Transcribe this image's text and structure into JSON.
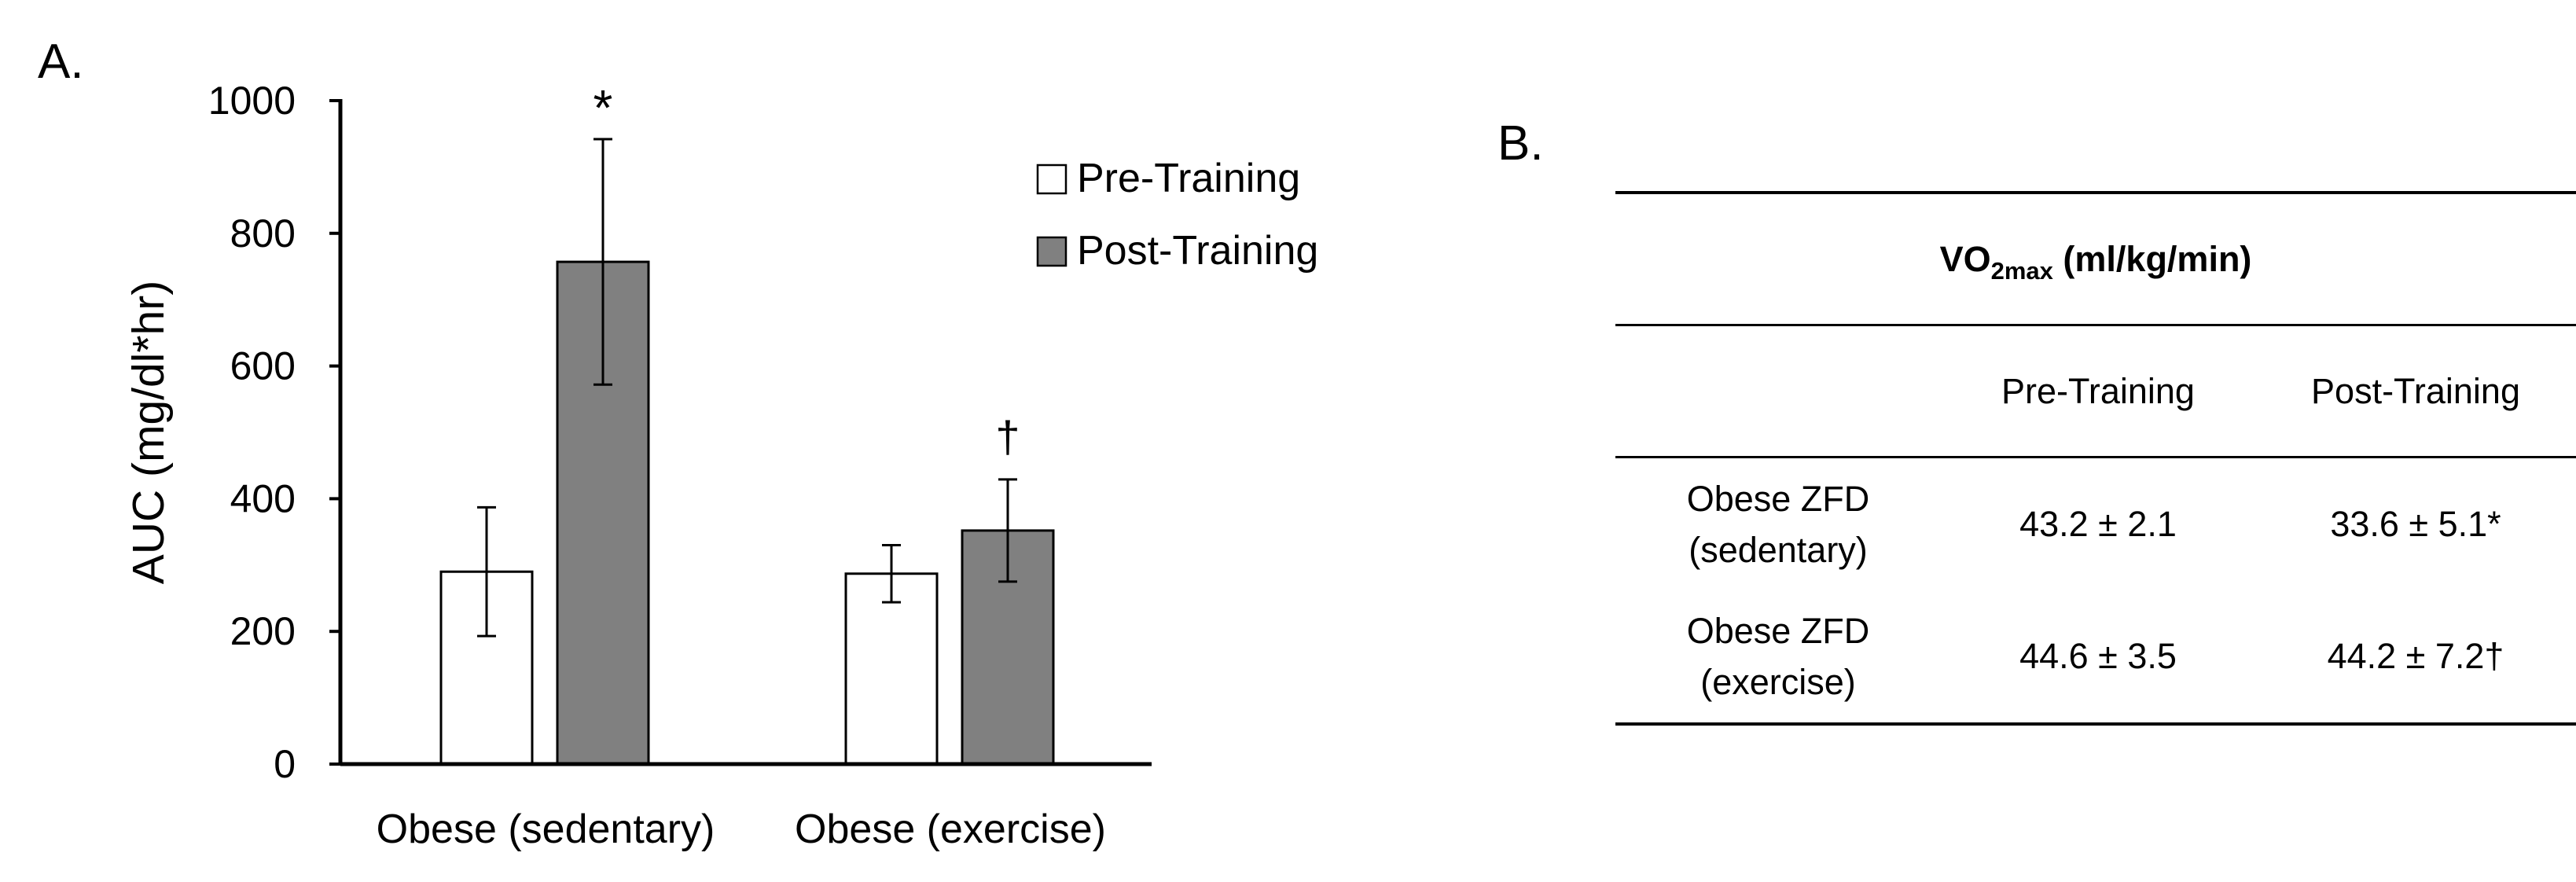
{
  "panel_a_label": "A.",
  "panel_b_label": "B.",
  "chart_data": {
    "type": "bar",
    "title": "",
    "xlabel": "",
    "ylabel": "AUC (mg/dl*hr)",
    "ylim": [
      0,
      1000
    ],
    "yticks": [
      0,
      200,
      400,
      600,
      800,
      1000
    ],
    "ytick_labels": [
      "0",
      "200",
      "400",
      "600",
      "800",
      "1000"
    ],
    "categories": [
      "Obese (sedentary)",
      "Obese (exercise)"
    ],
    "series": [
      {
        "name": "Pre-Training",
        "color": "#ffffff",
        "values": [
          290,
          287
        ],
        "errors": [
          97,
          43
        ]
      },
      {
        "name": "Post-Training",
        "color": "#808080",
        "values": [
          757,
          352
        ],
        "errors": [
          185,
          77
        ]
      }
    ],
    "annotations": [
      {
        "series": 1,
        "category": 0,
        "text": "*"
      },
      {
        "series": 1,
        "category": 1,
        "text": "†"
      }
    ],
    "legend_position": "top-right",
    "grid": false
  },
  "table": {
    "title_main": "VO",
    "title_sub": "2max",
    "title_unit": " (ml/kg/min)",
    "columns": [
      "",
      "Pre-Training",
      "Post-Training"
    ],
    "rows": [
      {
        "group_line1": "Obese ZFD",
        "group_line2": "(sedentary)",
        "pre": "43.2 ± 2.1",
        "post": "33.6 ± 5.1*"
      },
      {
        "group_line1": "Obese ZFD",
        "group_line2": "(exercise)",
        "pre": "44.6 ± 3.5",
        "post": "44.2 ± 7.2†"
      }
    ]
  }
}
